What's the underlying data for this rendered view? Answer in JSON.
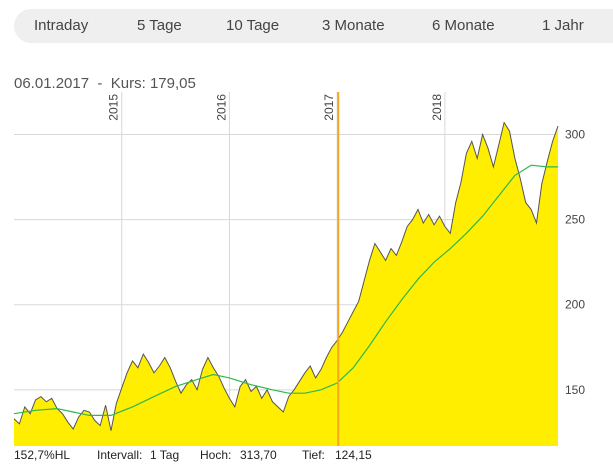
{
  "range_tabs": [
    {
      "label": "Intraday"
    },
    {
      "label": "5 Tage"
    },
    {
      "label": "10 Tage"
    },
    {
      "label": "3 Monate"
    },
    {
      "label": "6 Monate"
    },
    {
      "label": "1 Jahr"
    }
  ],
  "cursor": {
    "date_label": "06.01.2017",
    "separator": "-",
    "price_label": "Kurs:",
    "price_value": "179,05"
  },
  "stats": {
    "performance": "152,7%HL",
    "interval_label": "Intervall:",
    "interval_value": "1 Tag",
    "high_label": "Hoch:",
    "high_value": "313,70",
    "low_label": "Tief:",
    "low_value": "124,15"
  },
  "colors": {
    "area_fill": "#ffee00",
    "price_line": "#555555",
    "moving_average": "#2db84b",
    "cursor_line": "#f5a623",
    "grid": "#d8d8d8"
  },
  "chart_data": {
    "type": "area",
    "x_axis_labels": [
      "2015",
      "2016",
      "2017",
      "2018"
    ],
    "y_ticks": [
      150,
      200,
      250,
      300
    ],
    "ylim": [
      117,
      325
    ],
    "xlim": [
      2014.0,
      2019.05
    ],
    "grid": true,
    "cursor_x": 2017.01,
    "price": [
      [
        2014.0,
        133
      ],
      [
        2014.05,
        130
      ],
      [
        2014.1,
        140
      ],
      [
        2014.15,
        136
      ],
      [
        2014.2,
        144
      ],
      [
        2014.25,
        146
      ],
      [
        2014.3,
        143
      ],
      [
        2014.35,
        145
      ],
      [
        2014.4,
        139
      ],
      [
        2014.45,
        136
      ],
      [
        2014.5,
        131
      ],
      [
        2014.55,
        127
      ],
      [
        2014.6,
        134
      ],
      [
        2014.65,
        138
      ],
      [
        2014.7,
        137
      ],
      [
        2014.75,
        132
      ],
      [
        2014.8,
        129
      ],
      [
        2014.85,
        141
      ],
      [
        2014.9,
        126
      ],
      [
        2014.95,
        142
      ],
      [
        2015.0,
        151
      ],
      [
        2015.05,
        160
      ],
      [
        2015.1,
        167
      ],
      [
        2015.15,
        163
      ],
      [
        2015.2,
        171
      ],
      [
        2015.25,
        166
      ],
      [
        2015.3,
        160
      ],
      [
        2015.35,
        164
      ],
      [
        2015.4,
        169
      ],
      [
        2015.45,
        163
      ],
      [
        2015.5,
        155
      ],
      [
        2015.55,
        148
      ],
      [
        2015.6,
        153
      ],
      [
        2015.65,
        156
      ],
      [
        2015.7,
        150
      ],
      [
        2015.75,
        162
      ],
      [
        2015.8,
        169
      ],
      [
        2015.85,
        163
      ],
      [
        2015.9,
        158
      ],
      [
        2015.95,
        151
      ],
      [
        2016.0,
        145
      ],
      [
        2016.05,
        140
      ],
      [
        2016.1,
        152
      ],
      [
        2016.15,
        156
      ],
      [
        2016.2,
        149
      ],
      [
        2016.25,
        152
      ],
      [
        2016.3,
        145
      ],
      [
        2016.35,
        150
      ],
      [
        2016.4,
        143
      ],
      [
        2016.45,
        140
      ],
      [
        2016.5,
        137
      ],
      [
        2016.55,
        146
      ],
      [
        2016.6,
        150
      ],
      [
        2016.65,
        155
      ],
      [
        2016.7,
        160
      ],
      [
        2016.75,
        164
      ],
      [
        2016.8,
        157
      ],
      [
        2016.85,
        162
      ],
      [
        2016.9,
        169
      ],
      [
        2016.95,
        175
      ],
      [
        2017.0,
        179
      ],
      [
        2017.05,
        184
      ],
      [
        2017.1,
        190
      ],
      [
        2017.15,
        196
      ],
      [
        2017.2,
        202
      ],
      [
        2017.25,
        214
      ],
      [
        2017.3,
        226
      ],
      [
        2017.35,
        236
      ],
      [
        2017.4,
        231
      ],
      [
        2017.45,
        226
      ],
      [
        2017.5,
        233
      ],
      [
        2017.55,
        229
      ],
      [
        2017.6,
        237
      ],
      [
        2017.65,
        246
      ],
      [
        2017.7,
        250
      ],
      [
        2017.75,
        256
      ],
      [
        2017.8,
        248
      ],
      [
        2017.85,
        253
      ],
      [
        2017.9,
        247
      ],
      [
        2017.95,
        252
      ],
      [
        2018.0,
        246
      ],
      [
        2018.05,
        242
      ],
      [
        2018.1,
        260
      ],
      [
        2018.15,
        272
      ],
      [
        2018.2,
        289
      ],
      [
        2018.25,
        296
      ],
      [
        2018.3,
        286
      ],
      [
        2018.35,
        300
      ],
      [
        2018.4,
        292
      ],
      [
        2018.45,
        281
      ],
      [
        2018.5,
        294
      ],
      [
        2018.55,
        307
      ],
      [
        2018.6,
        302
      ],
      [
        2018.65,
        286
      ],
      [
        2018.7,
        274
      ],
      [
        2018.75,
        260
      ],
      [
        2018.8,
        256
      ],
      [
        2018.85,
        248
      ],
      [
        2018.9,
        271
      ],
      [
        2018.95,
        284
      ],
      [
        2019.0,
        296
      ],
      [
        2019.05,
        305
      ]
    ],
    "moving_average": [
      [
        2014.0,
        136
      ],
      [
        2014.2,
        138
      ],
      [
        2014.4,
        139
      ],
      [
        2014.55,
        137
      ],
      [
        2014.7,
        135
      ],
      [
        2014.9,
        135
      ],
      [
        2015.1,
        140
      ],
      [
        2015.3,
        146
      ],
      [
        2015.5,
        152
      ],
      [
        2015.7,
        156
      ],
      [
        2015.85,
        159
      ],
      [
        2016.0,
        157
      ],
      [
        2016.2,
        153
      ],
      [
        2016.4,
        150
      ],
      [
        2016.55,
        148
      ],
      [
        2016.7,
        148
      ],
      [
        2016.85,
        150
      ],
      [
        2017.0,
        154
      ],
      [
        2017.15,
        163
      ],
      [
        2017.3,
        176
      ],
      [
        2017.45,
        190
      ],
      [
        2017.6,
        203
      ],
      [
        2017.75,
        215
      ],
      [
        2017.9,
        225
      ],
      [
        2018.05,
        233
      ],
      [
        2018.2,
        242
      ],
      [
        2018.35,
        252
      ],
      [
        2018.5,
        264
      ],
      [
        2018.65,
        276
      ],
      [
        2018.8,
        282
      ],
      [
        2018.95,
        281
      ],
      [
        2019.05,
        281
      ]
    ]
  }
}
